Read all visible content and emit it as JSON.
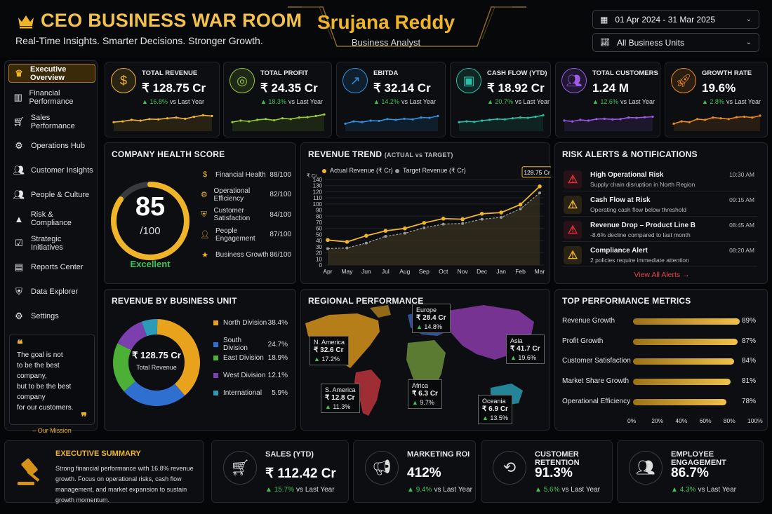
{
  "header": {
    "title": "CEO BUSINESS WAR ROOM",
    "tagline": "Real-Time Insights. Smarter Decisions. Stronger Growth.",
    "name": "Srujana Reddy",
    "role": "Business Analyst",
    "date_range": "01 Apr 2024 - 31 Mar 2025",
    "business_units": "All Business Units"
  },
  "sidebar": {
    "items": [
      {
        "label": "Executive Overview",
        "icon": "crown-icon",
        "active": true
      },
      {
        "label": "Financial Performance",
        "icon": "bar-chart-icon"
      },
      {
        "label": "Sales Performance",
        "icon": "cart-icon"
      },
      {
        "label": "Operations Hub",
        "icon": "gear-icon"
      },
      {
        "label": "Customer Insights",
        "icon": "customers-icon"
      },
      {
        "label": "People & Culture",
        "icon": "people-icon"
      },
      {
        "label": "Risk & Compliance",
        "icon": "warning-icon"
      },
      {
        "label": "Strategic Initiatives",
        "icon": "checklist-icon"
      },
      {
        "label": "Reports Center",
        "icon": "report-icon"
      },
      {
        "label": "Data Explorer",
        "icon": "shield-icon"
      },
      {
        "label": "Settings",
        "icon": "settings-icon"
      }
    ],
    "quote": {
      "lines": [
        "The goal is not",
        "to be the best company,",
        "but to be the best company",
        "for our customers."
      ],
      "attribution": "– Our Mission"
    }
  },
  "kpis": [
    {
      "label": "TOTAL REVENUE",
      "value": "₹ 128.75 Cr",
      "change": "16.8%",
      "suffix": "vs Last Year",
      "color": "#f0b429",
      "icon": "rupee-icon"
    },
    {
      "label": "TOTAL PROFIT",
      "value": "₹ 24.35 Cr",
      "change": "18.3%",
      "suffix": "vs Last Year",
      "color": "#9acd32",
      "icon": "coins-icon"
    },
    {
      "label": "EBITDA",
      "value": "₹ 32.14 Cr",
      "change": "14.2%",
      "suffix": "vs Last Year",
      "color": "#2f8fe0",
      "icon": "growth-chart-icon"
    },
    {
      "label": "CASH FLOW (YTD)",
      "value": "₹ 18.92 Cr",
      "change": "20.7%",
      "suffix": "vs Last Year",
      "color": "#27c0a8",
      "icon": "cash-icon"
    },
    {
      "label": "TOTAL CUSTOMERS",
      "value": "1.24 M",
      "change": "12.6%",
      "suffix": "vs Last Year",
      "color": "#9b59e8",
      "icon": "customers-icon"
    },
    {
      "label": "GROWTH RATE",
      "value": "19.6%",
      "change": "2.8%",
      "suffix": "vs Last Year",
      "color": "#f08a1c",
      "icon": "rocket-icon"
    }
  ],
  "health": {
    "title": "COMPANY HEALTH SCORE",
    "score": "85",
    "out_of": "/100",
    "score_fraction": 0.85,
    "status": "Excellent",
    "items": [
      {
        "label": "Financial Health",
        "value": "88/100",
        "icon": "rupee-icon"
      },
      {
        "label": "Operational Efficiency",
        "value": "82/100",
        "icon": "gear-icon"
      },
      {
        "label": "Customer Satisfaction",
        "value": "84/100",
        "icon": "heart-shield-icon"
      },
      {
        "label": "People Engagement",
        "value": "87/100",
        "icon": "person-icon"
      },
      {
        "label": "Business Growth",
        "value": "86/100",
        "icon": "star-icon"
      }
    ]
  },
  "trend": {
    "title": "REVENUE TREND",
    "subtitle": "(ACTUAL vs TARGET)",
    "legend_actual": "Actual Revenue (₹ Cr)",
    "legend_target": "Target Revenue (₹ Cr)",
    "y_unit": "₹ Cr",
    "callout": "128.75 Cr"
  },
  "chart_data": {
    "type": "line",
    "title": "REVENUE TREND",
    "ylabel": "₹ Cr",
    "ylim": [
      0,
      140
    ],
    "yticks": [
      0,
      10,
      20,
      30,
      40,
      50,
      60,
      70,
      80,
      90,
      100,
      110,
      120,
      130,
      140
    ],
    "categories": [
      "Apr",
      "May",
      "Jun",
      "Jul",
      "Aug",
      "Sep",
      "Oct",
      "Nov",
      "Dec",
      "Jan",
      "Feb",
      "Mar"
    ],
    "series": [
      {
        "name": "Actual Revenue (₹ Cr)",
        "color": "#f0b429",
        "values": [
          41,
          38,
          48,
          56,
          60,
          69,
          76,
          75,
          84,
          86,
          99,
          128.75
        ]
      },
      {
        "name": "Target Revenue (₹ Cr)",
        "color": "#9a9a9a",
        "values": [
          27,
          28,
          36,
          47,
          52,
          61,
          67,
          68,
          75,
          78,
          92,
          118
        ]
      }
    ],
    "legend": "top-left",
    "grid": true
  },
  "alerts": {
    "title": "RISK ALERTS & NOTIFICATIONS",
    "items": [
      {
        "title": "High Operational Risk",
        "subtitle": "Supply chain disruption in North Region",
        "time": "10:30 AM",
        "color": "#e0303a"
      },
      {
        "title": "Cash Flow at Risk",
        "subtitle": "Operating cash flow below threshold",
        "time": "09:15 AM",
        "color": "#f0b429"
      },
      {
        "title": "Revenue Drop – Product Line B",
        "subtitle": "-8.6% decline compared to last month",
        "time": "08:45 AM",
        "color": "#e0303a"
      },
      {
        "title": "Compliance Alert",
        "subtitle": "2 policies require immediate attention",
        "time": "08:20 AM",
        "color": "#f0b429"
      }
    ],
    "view_all": "View All Alerts →"
  },
  "business_unit": {
    "title": "REVENUE BY BUSINESS UNIT",
    "center_value": "₹ 128.75 Cr",
    "center_label": "Total Revenue",
    "segments": [
      {
        "name": "North Division",
        "value": 38.4,
        "label": "38.4%",
        "color": "#e8a21c"
      },
      {
        "name": "South Division",
        "value": 24.7,
        "label": "24.7%",
        "color": "#2f6fd0"
      },
      {
        "name": "East Division",
        "value": 18.9,
        "label": "18.9%",
        "color": "#4caf36"
      },
      {
        "name": "West Division",
        "value": 12.1,
        "label": "12.1%",
        "color": "#7b3fb0"
      },
      {
        "name": "International",
        "value": 5.9,
        "label": "5.9%",
        "color": "#2d9bb8"
      }
    ]
  },
  "regional": {
    "title": "REGIONAL PERFORMANCE",
    "regions": [
      {
        "name": "Europe",
        "value": "₹ 28.4 Cr",
        "change": "14.8%"
      },
      {
        "name": "N. America",
        "value": "₹ 32.6 Cr",
        "change": "17.2%"
      },
      {
        "name": "Asia",
        "value": "₹ 41.7 Cr",
        "change": "19.6%"
      },
      {
        "name": "S. America",
        "value": "₹ 12.8 Cr",
        "change": "11.3%"
      },
      {
        "name": "Africa",
        "value": "₹ 6.3 Cr",
        "change": "9.7%"
      },
      {
        "name": "Oceania",
        "value": "₹ 6.9 Cr",
        "change": "13.5%"
      }
    ]
  },
  "metrics": {
    "title": "TOP PERFORMANCE METRICS",
    "items": [
      {
        "label": "Revenue Growth",
        "value": 89,
        "display": "89%"
      },
      {
        "label": "Profit Growth",
        "value": 87,
        "display": "87%"
      },
      {
        "label": "Customer Satisfaction",
        "value": 84,
        "display": "84%"
      },
      {
        "label": "Market Share Growth",
        "value": 81,
        "display": "81%"
      },
      {
        "label": "Operational Efficiency",
        "value": 78,
        "display": "78%"
      }
    ],
    "axis": [
      "0%",
      "20%",
      "40%",
      "60%",
      "80%",
      "100%"
    ]
  },
  "summary": {
    "title": "EXECUTIVE SUMMARY",
    "text": "Strong financial performance with 16.8% revenue growth. Focus on operational risks, cash flow management, and market expansion to sustain growth momentum.",
    "icon": "gavel-icon"
  },
  "bottom_kpis": [
    {
      "label": "SALES (YTD)",
      "value": "₹ 112.42 Cr",
      "change": "15.7%",
      "suffix": "vs Last Year",
      "icon": "cart-icon"
    },
    {
      "label": "MARKETING ROI",
      "value": "412%",
      "change": "9.4%",
      "suffix": "vs Last Year",
      "icon": "megaphone-icon"
    },
    {
      "label": "CUSTOMER RETENTION",
      "value": "91.3%",
      "change": "5.6%",
      "suffix": "vs Last Year",
      "icon": "retention-icon"
    },
    {
      "label": "EMPLOYEE ENGAGEMENT",
      "value": "86.7%",
      "change": "4.3%",
      "suffix": "vs Last Year",
      "icon": "team-icon"
    }
  ]
}
